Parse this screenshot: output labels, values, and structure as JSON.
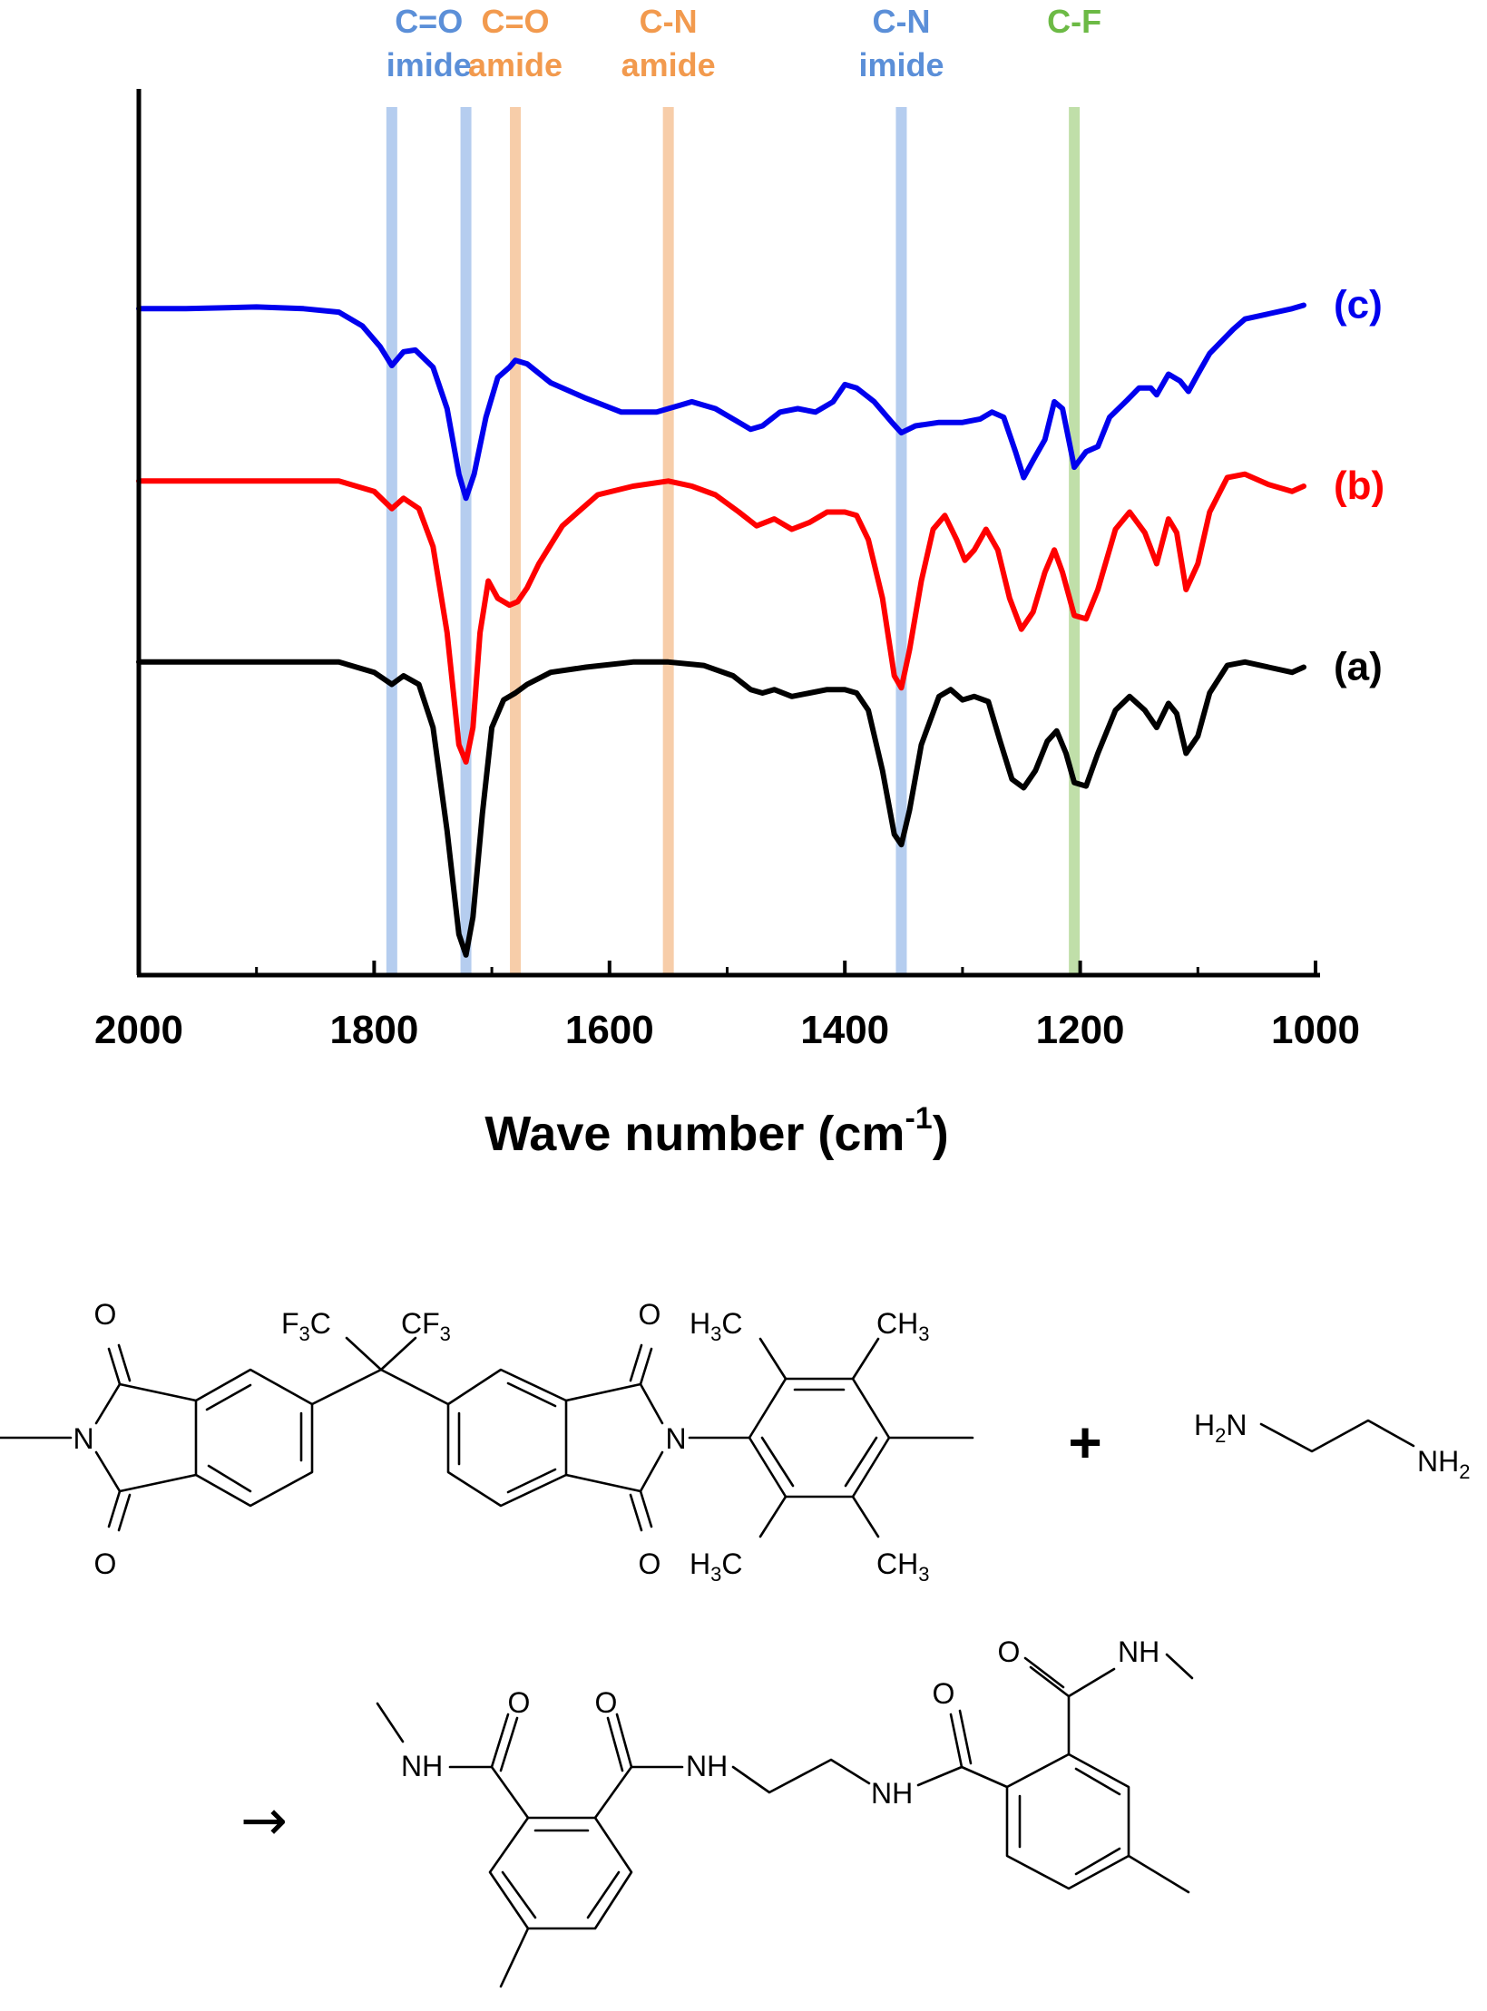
{
  "chart_data": {
    "type": "line",
    "xlabel": "Wave number (cm",
    "xlabel_sup": "-1",
    "xlabel_close": ")",
    "xlim": [
      2000,
      1000
    ],
    "xticks": [
      "2000",
      "1800",
      "1600",
      "1400",
      "1200",
      "1000"
    ],
    "grid": false,
    "bands": [
      {
        "x": 1785,
        "label1": "C=O",
        "label2": "imide",
        "color": "#a8c4ec",
        "text_color": "#5b8fd8"
      },
      {
        "x": 1722,
        "label1": "",
        "label2": "",
        "color": "#a8c4ec",
        "text_color": "#5b8fd8"
      },
      {
        "x": 1680,
        "label1": "C=O",
        "label2": "amide",
        "color": "#f6c49a",
        "text_color": "#f29a4e"
      },
      {
        "x": 1550,
        "label1": "C-N",
        "label2": "amide",
        "color": "#f6c49a",
        "text_color": "#f29a4e"
      },
      {
        "x": 1352,
        "label1": "C-N",
        "label2": "imide",
        "color": "#a8c4ec",
        "text_color": "#5b8fd8"
      },
      {
        "x": 1205,
        "label1": "C-F",
        "label2": "",
        "color": "#b5d99a",
        "text_color": "#6cba45"
      }
    ],
    "series": [
      {
        "name": "(c)",
        "color": "#0000ee",
        "offset": 2.05,
        "points": [
          [
            2000,
            0.58
          ],
          [
            1960,
            0.58
          ],
          [
            1900,
            0.59
          ],
          [
            1860,
            0.58
          ],
          [
            1830,
            0.56
          ],
          [
            1810,
            0.48
          ],
          [
            1795,
            0.36
          ],
          [
            1785,
            0.25
          ],
          [
            1775,
            0.33
          ],
          [
            1765,
            0.34
          ],
          [
            1750,
            0.24
          ],
          [
            1738,
            0.0
          ],
          [
            1728,
            -0.38
          ],
          [
            1722,
            -0.52
          ],
          [
            1715,
            -0.38
          ],
          [
            1705,
            -0.05
          ],
          [
            1695,
            0.18
          ],
          [
            1685,
            0.24
          ],
          [
            1680,
            0.28
          ],
          [
            1670,
            0.26
          ],
          [
            1650,
            0.15
          ],
          [
            1620,
            0.06
          ],
          [
            1590,
            -0.02
          ],
          [
            1560,
            -0.02
          ],
          [
            1550,
            0.0
          ],
          [
            1540,
            0.02
          ],
          [
            1530,
            0.04
          ],
          [
            1510,
            0.0
          ],
          [
            1490,
            -0.08
          ],
          [
            1480,
            -0.12
          ],
          [
            1470,
            -0.1
          ],
          [
            1455,
            -0.02
          ],
          [
            1440,
            0.0
          ],
          [
            1425,
            -0.02
          ],
          [
            1410,
            0.04
          ],
          [
            1400,
            0.14
          ],
          [
            1390,
            0.12
          ],
          [
            1375,
            0.04
          ],
          [
            1360,
            -0.08
          ],
          [
            1352,
            -0.14
          ],
          [
            1340,
            -0.1
          ],
          [
            1320,
            -0.08
          ],
          [
            1300,
            -0.08
          ],
          [
            1285,
            -0.06
          ],
          [
            1275,
            -0.02
          ],
          [
            1265,
            -0.05
          ],
          [
            1255,
            -0.25
          ],
          [
            1248,
            -0.4
          ],
          [
            1240,
            -0.3
          ],
          [
            1230,
            -0.18
          ],
          [
            1222,
            0.04
          ],
          [
            1215,
            0.0
          ],
          [
            1205,
            -0.34
          ],
          [
            1195,
            -0.25
          ],
          [
            1185,
            -0.22
          ],
          [
            1175,
            -0.05
          ],
          [
            1160,
            0.05
          ],
          [
            1150,
            0.12
          ],
          [
            1140,
            0.12
          ],
          [
            1135,
            0.08
          ],
          [
            1125,
            0.2
          ],
          [
            1115,
            0.16
          ],
          [
            1108,
            0.1
          ],
          [
            1100,
            0.2
          ],
          [
            1090,
            0.32
          ],
          [
            1070,
            0.46
          ],
          [
            1060,
            0.52
          ],
          [
            1040,
            0.55
          ],
          [
            1020,
            0.58
          ],
          [
            1010,
            0.6
          ]
        ]
      },
      {
        "name": "(b)",
        "color": "#ff0000",
        "offset": 1.05,
        "points": [
          [
            2000,
            0.58
          ],
          [
            1960,
            0.58
          ],
          [
            1900,
            0.58
          ],
          [
            1860,
            0.58
          ],
          [
            1830,
            0.58
          ],
          [
            1800,
            0.52
          ],
          [
            1785,
            0.42
          ],
          [
            1775,
            0.48
          ],
          [
            1762,
            0.42
          ],
          [
            1750,
            0.2
          ],
          [
            1738,
            -0.3
          ],
          [
            1728,
            -0.95
          ],
          [
            1722,
            -1.05
          ],
          [
            1716,
            -0.85
          ],
          [
            1710,
            -0.3
          ],
          [
            1703,
            0.0
          ],
          [
            1695,
            -0.1
          ],
          [
            1685,
            -0.14
          ],
          [
            1678,
            -0.12
          ],
          [
            1670,
            -0.04
          ],
          [
            1660,
            0.1
          ],
          [
            1640,
            0.32
          ],
          [
            1610,
            0.5
          ],
          [
            1580,
            0.55
          ],
          [
            1550,
            0.58
          ],
          [
            1530,
            0.55
          ],
          [
            1510,
            0.5
          ],
          [
            1490,
            0.4
          ],
          [
            1475,
            0.32
          ],
          [
            1460,
            0.36
          ],
          [
            1445,
            0.3
          ],
          [
            1430,
            0.34
          ],
          [
            1415,
            0.4
          ],
          [
            1400,
            0.4
          ],
          [
            1390,
            0.38
          ],
          [
            1380,
            0.24
          ],
          [
            1368,
            -0.1
          ],
          [
            1358,
            -0.55
          ],
          [
            1352,
            -0.62
          ],
          [
            1345,
            -0.4
          ],
          [
            1335,
            0.0
          ],
          [
            1325,
            0.3
          ],
          [
            1315,
            0.38
          ],
          [
            1305,
            0.24
          ],
          [
            1298,
            0.12
          ],
          [
            1290,
            0.18
          ],
          [
            1280,
            0.3
          ],
          [
            1270,
            0.18
          ],
          [
            1260,
            -0.1
          ],
          [
            1250,
            -0.28
          ],
          [
            1240,
            -0.18
          ],
          [
            1230,
            0.05
          ],
          [
            1222,
            0.18
          ],
          [
            1215,
            0.05
          ],
          [
            1205,
            -0.2
          ],
          [
            1195,
            -0.22
          ],
          [
            1185,
            -0.05
          ],
          [
            1170,
            0.3
          ],
          [
            1158,
            0.4
          ],
          [
            1145,
            0.28
          ],
          [
            1135,
            0.1
          ],
          [
            1125,
            0.36
          ],
          [
            1118,
            0.28
          ],
          [
            1110,
            -0.05
          ],
          [
            1100,
            0.1
          ],
          [
            1090,
            0.4
          ],
          [
            1075,
            0.6
          ],
          [
            1060,
            0.62
          ],
          [
            1040,
            0.56
          ],
          [
            1020,
            0.52
          ],
          [
            1010,
            0.55
          ]
        ]
      },
      {
        "name": "(a)",
        "color": "#000000",
        "offset": 0.0,
        "points": [
          [
            2000,
            0.58
          ],
          [
            1960,
            0.58
          ],
          [
            1900,
            0.58
          ],
          [
            1860,
            0.58
          ],
          [
            1830,
            0.58
          ],
          [
            1800,
            0.52
          ],
          [
            1785,
            0.45
          ],
          [
            1775,
            0.5
          ],
          [
            1762,
            0.45
          ],
          [
            1750,
            0.2
          ],
          [
            1738,
            -0.4
          ],
          [
            1728,
            -1.0
          ],
          [
            1722,
            -1.12
          ],
          [
            1716,
            -0.9
          ],
          [
            1708,
            -0.3
          ],
          [
            1700,
            0.2
          ],
          [
            1690,
            0.36
          ],
          [
            1680,
            0.4
          ],
          [
            1670,
            0.45
          ],
          [
            1650,
            0.52
          ],
          [
            1620,
            0.55
          ],
          [
            1580,
            0.58
          ],
          [
            1550,
            0.58
          ],
          [
            1520,
            0.56
          ],
          [
            1495,
            0.5
          ],
          [
            1480,
            0.42
          ],
          [
            1470,
            0.4
          ],
          [
            1460,
            0.42
          ],
          [
            1445,
            0.38
          ],
          [
            1430,
            0.4
          ],
          [
            1415,
            0.42
          ],
          [
            1400,
            0.42
          ],
          [
            1390,
            0.4
          ],
          [
            1380,
            0.3
          ],
          [
            1368,
            -0.05
          ],
          [
            1358,
            -0.42
          ],
          [
            1352,
            -0.48
          ],
          [
            1345,
            -0.28
          ],
          [
            1335,
            0.1
          ],
          [
            1320,
            0.38
          ],
          [
            1310,
            0.42
          ],
          [
            1300,
            0.36
          ],
          [
            1290,
            0.38
          ],
          [
            1278,
            0.35
          ],
          [
            1268,
            0.12
          ],
          [
            1258,
            -0.1
          ],
          [
            1248,
            -0.15
          ],
          [
            1238,
            -0.05
          ],
          [
            1228,
            0.12
          ],
          [
            1220,
            0.18
          ],
          [
            1212,
            0.05
          ],
          [
            1205,
            -0.12
          ],
          [
            1195,
            -0.14
          ],
          [
            1185,
            0.05
          ],
          [
            1170,
            0.3
          ],
          [
            1158,
            0.38
          ],
          [
            1145,
            0.3
          ],
          [
            1135,
            0.2
          ],
          [
            1125,
            0.34
          ],
          [
            1118,
            0.28
          ],
          [
            1110,
            0.05
          ],
          [
            1100,
            0.15
          ],
          [
            1090,
            0.4
          ],
          [
            1075,
            0.56
          ],
          [
            1060,
            0.58
          ],
          [
            1040,
            0.55
          ],
          [
            1020,
            0.52
          ],
          [
            1010,
            0.55
          ]
        ]
      }
    ]
  },
  "scheme": {
    "reactant1_labels": {
      "F": "F",
      "C": "C",
      "three": "3",
      "CF": "CF",
      "O": "O",
      "N": "N",
      "H": "H",
      "CH": "CH"
    },
    "plus": "+",
    "reactant2": {
      "H": "H",
      "two": "2",
      "N": "N",
      "NH": "NH"
    },
    "arrow": "→",
    "product_labels": {
      "O": "O",
      "NH": "NH"
    }
  }
}
